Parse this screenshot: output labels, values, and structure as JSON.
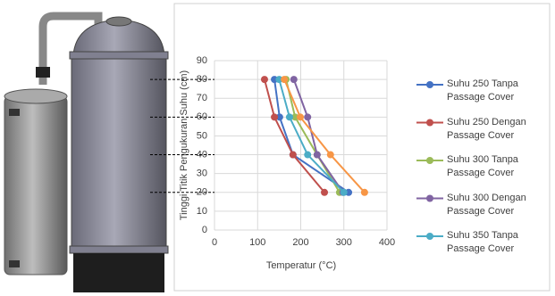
{
  "chart_data": {
    "type": "line",
    "xlabel": "Temperatur (°C)",
    "ylabel": "Tinggi Titik Pengukuran Suhu (cm)",
    "y": [
      20,
      40,
      60,
      80
    ],
    "series": [
      {
        "name": "Suhu 250 Tanpa Passage Cover",
        "color": "#4472c4",
        "values": [
          311,
          182,
          151,
          139
        ]
      },
      {
        "name": "Suhu 250 Dengan Passage Cover",
        "color": "#c0504d",
        "values": [
          255,
          182,
          139,
          116
        ]
      },
      {
        "name": "Suhu 300 Tanpa Passage Cover",
        "color": "#9bbb59",
        "values": [
          290,
          238,
          187,
          166
        ]
      },
      {
        "name": "Suhu 300 Dengan Passage Cover",
        "color": "#8064a2",
        "values": [
          298,
          238,
          216,
          184
        ]
      },
      {
        "name": "Suhu 350 Tanpa Passage Cover",
        "color": "#4bacc6",
        "values": [
          300,
          216,
          174,
          150
        ]
      },
      {
        "color": "#f79646",
        "values": [
          348,
          269,
          199,
          162
        ]
      }
    ],
    "xlim": [
      0,
      400
    ],
    "xticks": [
      0,
      100,
      200,
      300,
      400
    ],
    "ylim": [
      0,
      90
    ],
    "yticks": [
      0,
      10,
      20,
      30,
      40,
      50,
      60,
      70,
      80,
      90
    ],
    "grid": true
  }
}
